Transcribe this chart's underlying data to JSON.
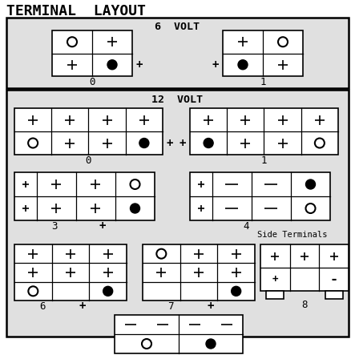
{
  "title": "TERMINAL  LAYOUT",
  "bg_color": "#e0e0e0",
  "outer_bg": "#ffffff",
  "section1_label": "6  VOLT",
  "section2_label": "12  VOLT",
  "side_terminals_label": "Side Terminals",
  "font_family": "monospace"
}
